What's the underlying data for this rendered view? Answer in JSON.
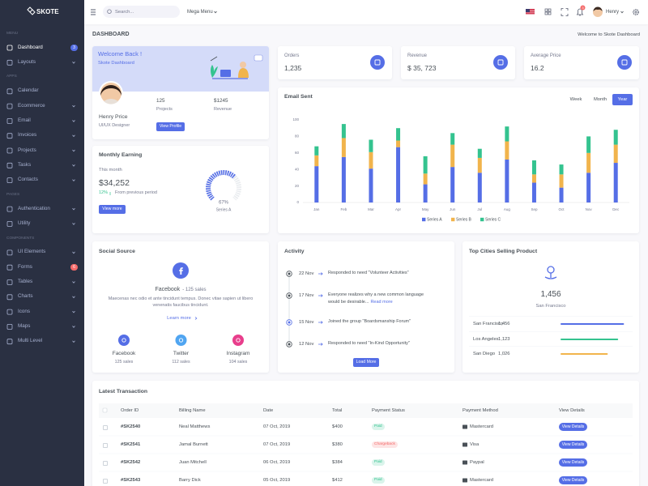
{
  "sidebar": {
    "logo": "SKOTE",
    "sections": [
      {
        "header": "MENU",
        "items": [
          {
            "label": "Dashboard",
            "badge": "3",
            "badge_color": "#556ee6",
            "active": true
          },
          {
            "label": "Layouts",
            "expandable": true
          }
        ]
      },
      {
        "header": "APPS",
        "items": [
          {
            "label": "Calendar"
          },
          {
            "label": "Ecommerce",
            "expandable": true
          },
          {
            "label": "Email",
            "expandable": true
          },
          {
            "label": "Invoices",
            "expandable": true
          },
          {
            "label": "Projects",
            "expandable": true
          },
          {
            "label": "Tasks",
            "expandable": true
          },
          {
            "label": "Contacts",
            "expandable": true
          }
        ]
      },
      {
        "header": "PAGES",
        "items": [
          {
            "label": "Authentication",
            "expandable": true
          },
          {
            "label": "Utility",
            "expandable": true
          }
        ]
      },
      {
        "header": "COMPONENTS",
        "items": [
          {
            "label": "UI Elements",
            "expandable": true
          },
          {
            "label": "Forms",
            "badge": "6",
            "badge_color": "#f46a6a"
          },
          {
            "label": "Tables",
            "expandable": true
          },
          {
            "label": "Charts",
            "expandable": true
          },
          {
            "label": "Icons",
            "expandable": true
          },
          {
            "label": "Maps",
            "expandable": true
          },
          {
            "label": "Multi Level",
            "expandable": true
          }
        ]
      }
    ]
  },
  "topbar": {
    "search_placeholder": "Search...",
    "mega_menu": "Mega Menu",
    "notification_count": "3",
    "user": "Henry"
  },
  "page": {
    "title": "DASHBOARD",
    "breadcrumb": "Welcome to Skote Dashboard"
  },
  "welcome": {
    "title": "Welcome Back !",
    "subtitle": "Skote Dashboard",
    "name": "Henry Price",
    "role": "UI/UX Designer",
    "stats": [
      {
        "value": "125",
        "label": "Projects"
      },
      {
        "value": "$1245",
        "label": "Revenue"
      }
    ],
    "button": "View Profile"
  },
  "monthly_earning": {
    "title": "Monthly Earning",
    "period": "This month",
    "amount": "$34,252",
    "change": "12%",
    "change_text": "From previous period",
    "button": "View more",
    "gauge": {
      "value": 67,
      "label": "67%",
      "series": "Series A"
    }
  },
  "stats": [
    {
      "title": "Orders",
      "value": "1,235"
    },
    {
      "title": "Revenue",
      "value": "$ 35, 723"
    },
    {
      "title": "Average Price",
      "value": "16.2"
    }
  ],
  "email_sent": {
    "buttons": [
      "Week",
      "Month",
      "Year"
    ],
    "active": 2
  },
  "chart_data": {
    "type": "bar",
    "stacked": true,
    "title": "Email Sent",
    "categories": [
      "Jan",
      "Feb",
      "Mar",
      "Apr",
      "May",
      "Jun",
      "Jul",
      "Aug",
      "Sep",
      "Oct",
      "Nov",
      "Dec"
    ],
    "series": [
      {
        "name": "Series A",
        "color": "#556ee6",
        "values": [
          44,
          55,
          41,
          67,
          22,
          43,
          36,
          52,
          24,
          18,
          36,
          48
        ]
      },
      {
        "name": "Series B",
        "color": "#f1b44c",
        "values": [
          13,
          23,
          20,
          8,
          13,
          27,
          18,
          22,
          10,
          16,
          24,
          22
        ]
      },
      {
        "name": "Series C",
        "color": "#34c38f",
        "values": [
          11,
          17,
          15,
          15,
          21,
          14,
          11,
          18,
          17,
          12,
          20,
          18
        ]
      }
    ],
    "ylim": [
      0,
      100
    ],
    "yticks": [
      0,
      20,
      40,
      60,
      80,
      100
    ],
    "grid": false,
    "legend": "bottom"
  },
  "social_source": {
    "title": "Social Source",
    "featured": {
      "name": "Facebook",
      "sales": "- 125 sales"
    },
    "description": [
      "Maecenas nec odio et ante tincidunt tempus. Donec vitae sapien ut libero",
      "venenatis faucibus tincidunt."
    ],
    "link": "Learn more",
    "sources": [
      {
        "name": "Facebook",
        "sales": "125 sales",
        "color": "#556ee6"
      },
      {
        "name": "Twitter",
        "sales": "112 sales",
        "color": "#50a5f1"
      },
      {
        "name": "Instagram",
        "sales": "104 sales",
        "color": "#e83e8c"
      }
    ]
  },
  "activity": {
    "title": "Activity",
    "items": [
      {
        "date": "22 Nov",
        "text": [
          "Responded to need \"Volunteer Activities\""
        ]
      },
      {
        "date": "17 Nov",
        "text": [
          "Everyone realizes why a new common language",
          "would be desirable..."
        ],
        "link": "Read more"
      },
      {
        "date": "15 Nov",
        "text": [
          "Joined the group \"Boardsmanship Forum\""
        ],
        "active": true
      },
      {
        "date": "12 Nov",
        "text": [
          "Responded to need \"In-Kind Opportunity\""
        ]
      }
    ],
    "button": "Load More"
  },
  "top_cities": {
    "title": "Top Cities Selling Product",
    "total": "1,456",
    "city": "San Francisco",
    "rows": [
      {
        "city": "San Francisco",
        "value": "1,456",
        "progress": 98,
        "color": "#556ee6"
      },
      {
        "city": "Los Angeles",
        "value": "1,123",
        "progress": 89,
        "color": "#34c38f"
      },
      {
        "city": "San Diego",
        "value": "1,026",
        "progress": 73,
        "color": "#f1b44c"
      }
    ]
  },
  "transactions": {
    "title": "Latest Transaction",
    "columns": [
      "Order ID",
      "Billing Name",
      "Date",
      "Total",
      "Payment Status",
      "Payment Method",
      "View Details"
    ],
    "rows": [
      {
        "cells": [
          "#SK2540",
          "Neal Matthews",
          "07 Oct, 2019",
          "$400"
        ],
        "status": "Paid",
        "status_color": "#34c38f",
        "method": "Mastercard",
        "button": "View Details"
      },
      {
        "cells": [
          "#SK2541",
          "Jamal Burnett",
          "07 Oct, 2019",
          "$380"
        ],
        "status": "Chargeback",
        "status_color": "#f46a6a",
        "method": "Visa",
        "button": "View Details"
      },
      {
        "cells": [
          "#SK2542",
          "Juan Mitchell",
          "06 Oct, 2019",
          "$384"
        ],
        "status": "Paid",
        "status_color": "#34c38f",
        "method": "Paypal",
        "button": "View Details"
      },
      {
        "cells": [
          "#SK2543",
          "Barry Dick",
          "05 Oct, 2019",
          "$412"
        ],
        "status": "Paid",
        "status_color": "#34c38f",
        "method": "Mastercard",
        "button": "View Details"
      }
    ]
  }
}
